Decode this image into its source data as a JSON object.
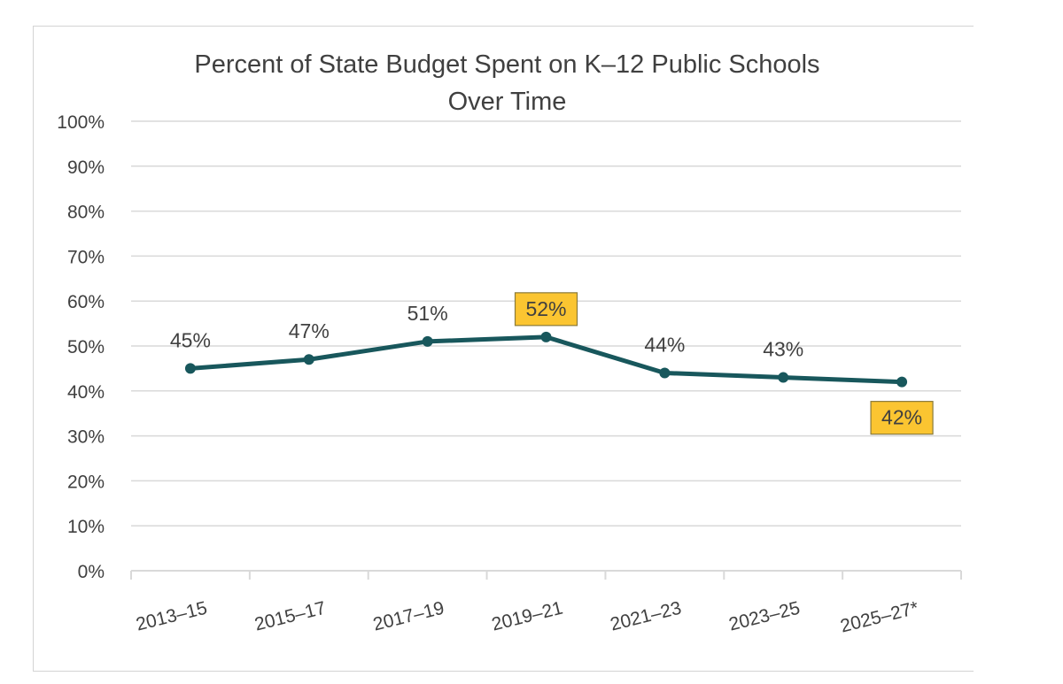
{
  "chart_data": {
    "type": "line",
    "title": "Percent of State Budget Spent on K–12 Public Schools\nOver Time",
    "categories": [
      "2013–15",
      "2015–17",
      "2017–19",
      "2019–21",
      "2021–23",
      "2023–25",
      "2025–27*"
    ],
    "values": [
      45,
      47,
      51,
      52,
      44,
      43,
      42
    ],
    "value_labels": [
      "45%",
      "47%",
      "51%",
      "52%",
      "44%",
      "43%",
      "42%"
    ],
    "highlighted": [
      false,
      false,
      false,
      true,
      false,
      false,
      true
    ],
    "y_ticks": [
      "0%",
      "10%",
      "20%",
      "30%",
      "40%",
      "50%",
      "60%",
      "70%",
      "80%",
      "90%",
      "100%"
    ],
    "ylim": [
      0,
      100
    ],
    "xlabel": "",
    "ylabel": "",
    "grid": true,
    "legend": "none",
    "colors": {
      "line": "#18575c",
      "highlight_fill": "#fbc531",
      "highlight_border": "#8a7a3a",
      "grid": "#d9d9d9",
      "text": "#404040"
    }
  }
}
